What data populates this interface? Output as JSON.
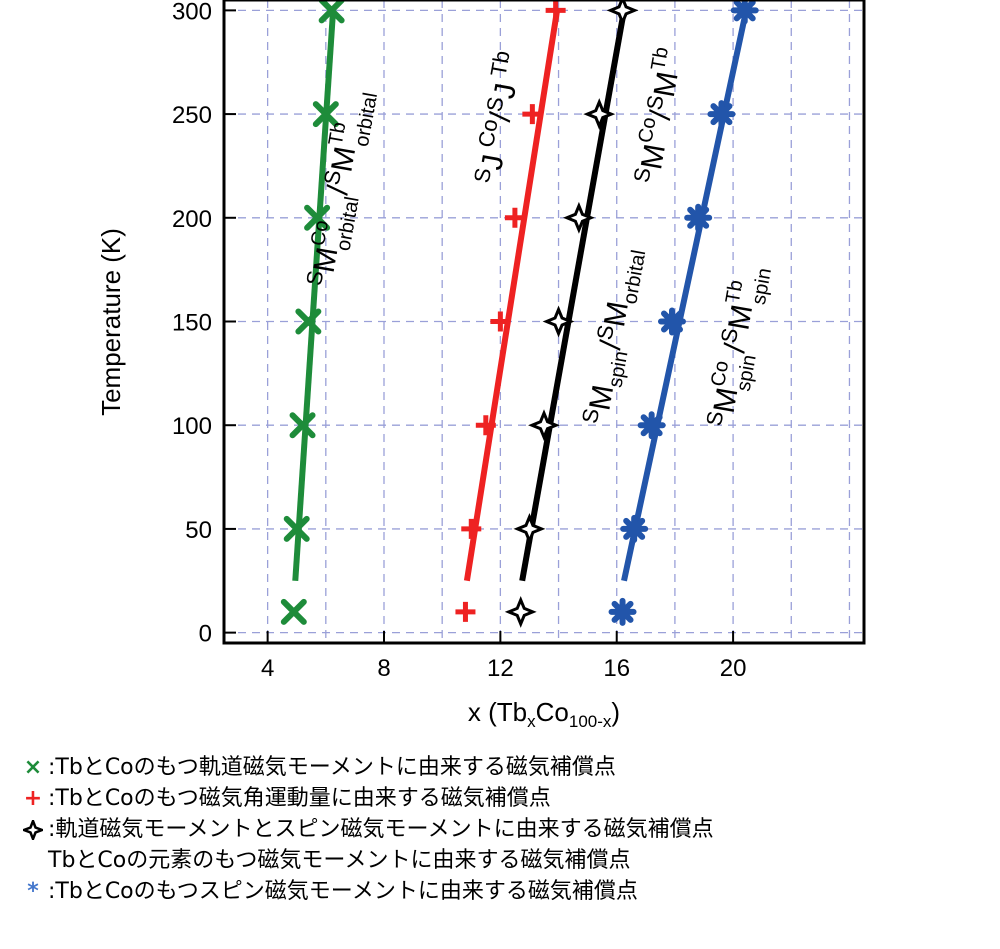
{
  "chart_data": {
    "type": "line",
    "xlabel": "x (TbxCo100-x)",
    "xlabel_parts": {
      "x": "x (Tb",
      "sub1": "x",
      "mid": "Co",
      "sub2": "100-x",
      "end": ")"
    },
    "ylabel": "Temperature (K)",
    "xlim": [
      2.5,
      24.5
    ],
    "ylim": [
      -5,
      305
    ],
    "xticks": [
      4,
      8,
      12,
      16,
      20
    ],
    "yticks": [
      0,
      50,
      100,
      150,
      200,
      250,
      300
    ],
    "grid": true,
    "series": [
      {
        "name": "sMCo_orbital / sMTb_orbital",
        "color": "#1e8c3a",
        "marker": "x",
        "x": [
          4.9,
          5.0,
          5.2,
          5.4,
          5.7,
          6.0,
          6.2
        ],
        "y": [
          10,
          50,
          100,
          150,
          200,
          250,
          300
        ],
        "line_x": [
          4.95,
          6.25
        ],
        "line_y": [
          25,
          300
        ]
      },
      {
        "name": "sJCo / sJTb",
        "color": "#ee2222",
        "marker": "plus",
        "x": [
          10.8,
          11.0,
          11.5,
          12.0,
          12.5,
          13.1,
          13.9
        ],
        "y": [
          10,
          50,
          100,
          150,
          200,
          250,
          300
        ],
        "line_x": [
          10.85,
          13.95
        ],
        "line_y": [
          25,
          300
        ]
      },
      {
        "name": "sM_spin / sM_orbital",
        "color": "#000000",
        "marker": "star4",
        "x": [
          12.7,
          13.0,
          13.5,
          14.0,
          14.7,
          15.4,
          16.2
        ],
        "y": [
          10,
          50,
          100,
          150,
          200,
          250,
          300
        ],
        "line_x": [
          12.75,
          16.25
        ],
        "line_y": [
          25,
          300
        ]
      },
      {
        "name": "sMCo_spin / sMTb_spin",
        "color": "#2255aa",
        "marker": "asterisk",
        "x": [
          16.2,
          16.6,
          17.2,
          17.9,
          18.8,
          19.6,
          20.4
        ],
        "y": [
          10,
          50,
          100,
          150,
          200,
          250,
          300
        ],
        "line_x": [
          16.25,
          20.45
        ],
        "line_y": [
          25,
          300
        ]
      }
    ]
  },
  "legend": [
    {
      "symbol": "×",
      "color": "#1e8c3a",
      "text": ":TbとCoのもつ軌道磁気モーメントに由来する磁気補償点"
    },
    {
      "symbol": "+",
      "color": "#ee2222",
      "text": ":TbとCoのもつ磁気角運動量に由来する磁気補償点"
    },
    {
      "symbol": "star4",
      "color": "#000000",
      "text": ":軌道磁気モーメントとスピン磁気モーメントに由来する磁気補償点"
    },
    {
      "symbol": "",
      "color": "#000000",
      "text": "TbとCoの元素のもつ磁気モーメントに由来する磁気補償点"
    },
    {
      "symbol": "*",
      "color": "#4477cc",
      "text": ":TbとCoのもつスピン磁気モーメントに由来する磁気補償点"
    }
  ]
}
